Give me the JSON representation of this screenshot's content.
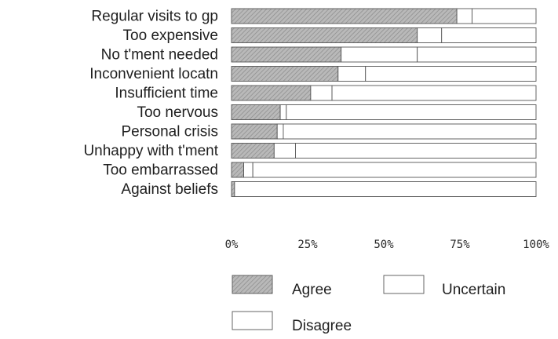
{
  "chart_data": {
    "type": "bar",
    "orientation": "horizontal",
    "stacked": "percent",
    "categories": [
      "Regular visits to gp",
      "Too expensive",
      "No t'ment needed",
      "Inconvenient locatn",
      "Insufficient time",
      "Too nervous",
      "Personal crisis",
      "Unhappy with t'ment",
      "Too embarrassed",
      "Against beliefs"
    ],
    "series": [
      {
        "name": "Agree",
        "values": [
          74,
          61,
          36,
          35,
          26,
          16,
          15,
          14,
          4,
          1
        ]
      },
      {
        "name": "Uncertain",
        "values": [
          5,
          8,
          25,
          9,
          7,
          2,
          2,
          7,
          3,
          0
        ]
      },
      {
        "name": "Disagree",
        "values": [
          21,
          31,
          39,
          56,
          67,
          82,
          83,
          79,
          93,
          99
        ]
      }
    ],
    "x_ticks": [
      "0%",
      "25%",
      "50%",
      "75%",
      "100%"
    ],
    "xlim": [
      0,
      100
    ],
    "legend": [
      "Agree",
      "Uncertain",
      "Disagree"
    ],
    "legend_position": "bottom",
    "grid": false,
    "colors": {
      "agree": "#b9b9b9",
      "uncertain": "#ffffff",
      "disagree": "#ffffff",
      "outline": "#555555"
    }
  }
}
